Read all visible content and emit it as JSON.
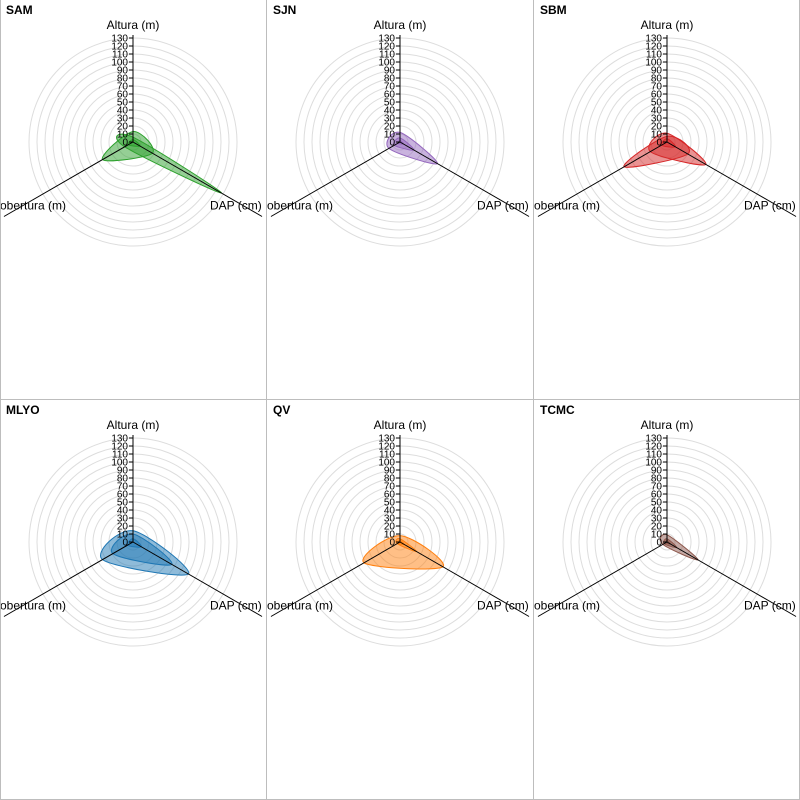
{
  "chart_data": [
    {
      "type": "radar",
      "title": "SAM",
      "color": "#2ca02c",
      "axes": [
        "Altura (m)",
        "DAP (cm)",
        "Cobertura (m)"
      ],
      "rlim": [
        0,
        130
      ],
      "ticks": [
        0,
        10,
        20,
        30,
        40,
        50,
        60,
        70,
        80,
        90,
        100,
        110,
        120,
        130
      ],
      "series": [
        {
          "values": [
            13,
            28,
            44
          ]
        },
        {
          "values": [
            6,
            128,
            12
          ]
        },
        {
          "values": [
            3,
            10,
            7
          ]
        }
      ]
    },
    {
      "type": "radar",
      "title": "SJN",
      "color": "#9467bd",
      "axes": [
        "Altura (m)",
        "DAP (cm)",
        "Cobertura (m)"
      ],
      "rlim": [
        0,
        130
      ],
      "ticks": [
        0,
        10,
        20,
        30,
        40,
        50,
        60,
        70,
        80,
        90,
        100,
        110,
        120,
        130
      ],
      "series": [
        {
          "values": [
            12,
            54,
            16
          ]
        },
        {
          "values": [
            5,
            20,
            8
          ]
        },
        {
          "values": [
            2,
            5,
            3
          ]
        }
      ]
    },
    {
      "type": "radar",
      "title": "SBM",
      "color": "#d62728",
      "axes": [
        "Altura (m)",
        "DAP (cm)",
        "Cobertura (m)"
      ],
      "rlim": [
        0,
        130
      ],
      "ticks": [
        0,
        10,
        20,
        30,
        40,
        50,
        60,
        70,
        80,
        90,
        100,
        110,
        120,
        130
      ],
      "series": [
        {
          "values": [
            11,
            56,
            24
          ]
        },
        {
          "values": [
            7,
            30,
            62
          ]
        },
        {
          "values": [
            4,
            12,
            8
          ]
        }
      ]
    },
    {
      "type": "radar",
      "title": "MLYO",
      "color": "#1f77b4",
      "axes": [
        "Altura (m)",
        "DAP (cm)",
        "Cobertura (m)"
      ],
      "rlim": [
        0,
        130
      ],
      "ticks": [
        0,
        10,
        20,
        30,
        40,
        50,
        60,
        70,
        80,
        90,
        100,
        110,
        120,
        130
      ],
      "series": [
        {
          "values": [
            10,
            56,
            29
          ]
        },
        {
          "values": [
            14,
            80,
            44
          ]
        },
        {
          "values": [
            4,
            12,
            8
          ]
        }
      ]
    },
    {
      "type": "radar",
      "title": "QV",
      "color": "#ff7f0e",
      "axes": [
        "Altura (m)",
        "DAP (cm)",
        "Cobertura (m)"
      ],
      "rlim": [
        0,
        130
      ],
      "ticks": [
        0,
        10,
        20,
        30,
        40,
        50,
        60,
        70,
        80,
        90,
        100,
        110,
        120,
        130
      ],
      "series": [
        {
          "values": [
            8,
            62,
            52
          ]
        },
        {
          "values": [
            4,
            24,
            4
          ]
        },
        {
          "values": [
            2,
            6,
            3
          ]
        }
      ]
    },
    {
      "type": "radar",
      "title": "TCMC",
      "color": "#8c564b",
      "axes": [
        "Altura (m)",
        "DAP (cm)",
        "Cobertura (m)"
      ],
      "rlim": [
        0,
        130
      ],
      "ticks": [
        0,
        10,
        20,
        30,
        40,
        50,
        60,
        70,
        80,
        90,
        100,
        110,
        120,
        130
      ],
      "series": [
        {
          "values": [
            9,
            45,
            6
          ]
        },
        {
          "values": [
            4,
            14,
            4
          ]
        },
        {
          "values": [
            2,
            5,
            2
          ]
        }
      ]
    }
  ]
}
